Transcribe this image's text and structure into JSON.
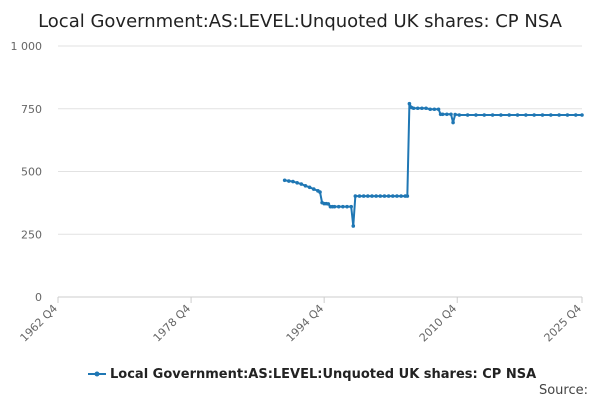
{
  "chart_data": {
    "type": "line",
    "title": "Local Government:AS:LEVEL:Unquoted UK shares: CP NSA",
    "xlabel": "",
    "ylabel": "",
    "x_range": [
      1962.75,
      2025.75
    ],
    "ylim": [
      0,
      1000
    ],
    "y_ticks": [
      {
        "value": 0,
        "label": "0"
      },
      {
        "value": 250,
        "label": "250"
      },
      {
        "value": 500,
        "label": "500"
      },
      {
        "value": 750,
        "label": "750"
      },
      {
        "value": 1000,
        "label": "1 000"
      }
    ],
    "x_ticks": [
      {
        "value": 1962.75,
        "label": "1962 Q4"
      },
      {
        "value": 1978.75,
        "label": "1978 Q4"
      },
      {
        "value": 1994.75,
        "label": "1994 Q4"
      },
      {
        "value": 2010.75,
        "label": "2010 Q4"
      },
      {
        "value": 2025.75,
        "label": "2025 Q4"
      }
    ],
    "grid": true,
    "legend_position": "bottom",
    "color": "#1f77b4",
    "series": [
      {
        "name": "Local Government:AS:LEVEL:Unquoted UK shares: CP NSA",
        "points": [
          [
            1990.0,
            465
          ],
          [
            1990.5,
            462
          ],
          [
            1991.0,
            460
          ],
          [
            1991.5,
            455
          ],
          [
            1992.0,
            450
          ],
          [
            1992.5,
            443
          ],
          [
            1993.0,
            437
          ],
          [
            1993.5,
            430
          ],
          [
            1994.0,
            423
          ],
          [
            1994.25,
            418
          ],
          [
            1994.5,
            376
          ],
          [
            1994.75,
            372
          ],
          [
            1995.0,
            372
          ],
          [
            1995.25,
            371
          ],
          [
            1995.5,
            360
          ],
          [
            1995.75,
            360
          ],
          [
            1996.0,
            360
          ],
          [
            1996.5,
            360
          ],
          [
            1997.0,
            360
          ],
          [
            1997.5,
            360
          ],
          [
            1998.0,
            360
          ],
          [
            1998.25,
            283
          ],
          [
            1998.5,
            402
          ],
          [
            1999.0,
            402
          ],
          [
            1999.5,
            402
          ],
          [
            2000.0,
            402
          ],
          [
            2000.5,
            402
          ],
          [
            2001.0,
            402
          ],
          [
            2001.5,
            402
          ],
          [
            2002.0,
            402
          ],
          [
            2002.5,
            402
          ],
          [
            2003.0,
            402
          ],
          [
            2003.5,
            402
          ],
          [
            2004.0,
            402
          ],
          [
            2004.5,
            402
          ],
          [
            2004.75,
            402
          ],
          [
            2005.0,
            770
          ],
          [
            2005.25,
            755
          ],
          [
            2005.5,
            752
          ],
          [
            2006.0,
            752
          ],
          [
            2006.5,
            752
          ],
          [
            2007.0,
            752
          ],
          [
            2007.5,
            748
          ],
          [
            2008.0,
            748
          ],
          [
            2008.5,
            748
          ],
          [
            2008.75,
            728
          ],
          [
            2009.0,
            728
          ],
          [
            2009.5,
            728
          ],
          [
            2010.0,
            728
          ],
          [
            2010.25,
            695
          ],
          [
            2010.5,
            727
          ],
          [
            2011.0,
            725
          ],
          [
            2012.0,
            725
          ],
          [
            2013.0,
            725
          ],
          [
            2014.0,
            725
          ],
          [
            2015.0,
            725
          ],
          [
            2016.0,
            725
          ],
          [
            2017.0,
            725
          ],
          [
            2018.0,
            725
          ],
          [
            2019.0,
            725
          ],
          [
            2020.0,
            725
          ],
          [
            2021.0,
            725
          ],
          [
            2022.0,
            725
          ],
          [
            2023.0,
            725
          ],
          [
            2024.0,
            725
          ],
          [
            2025.0,
            725
          ],
          [
            2025.75,
            725
          ]
        ]
      }
    ]
  },
  "source_label": "Source:"
}
